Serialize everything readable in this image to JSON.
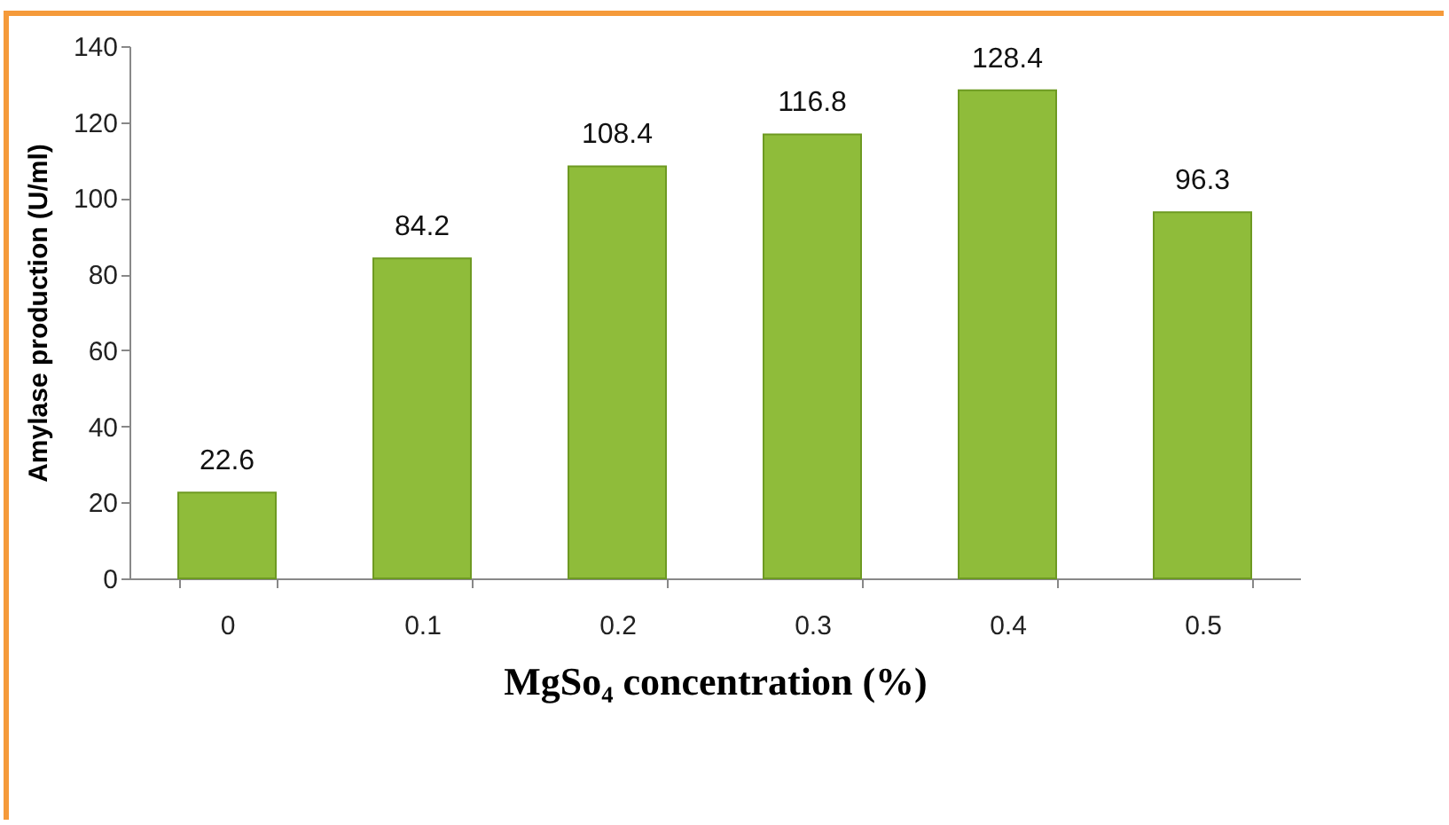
{
  "chart_data": {
    "type": "bar",
    "xlabel": "MgSo₄ concentration (%)",
    "ylabel": "Amylase production (U/ml)",
    "categories": [
      "0",
      "0.1",
      "0.2",
      "0.3",
      "0.4",
      "0.5"
    ],
    "values": [
      22.6,
      84.2,
      108.4,
      116.8,
      128.4,
      96.3
    ],
    "color": "#8fbc3a",
    "ylim": [
      0,
      140
    ],
    "yticks": [
      0,
      20,
      40,
      60,
      80,
      100,
      120,
      140
    ],
    "grid": false,
    "data_labels": true
  }
}
